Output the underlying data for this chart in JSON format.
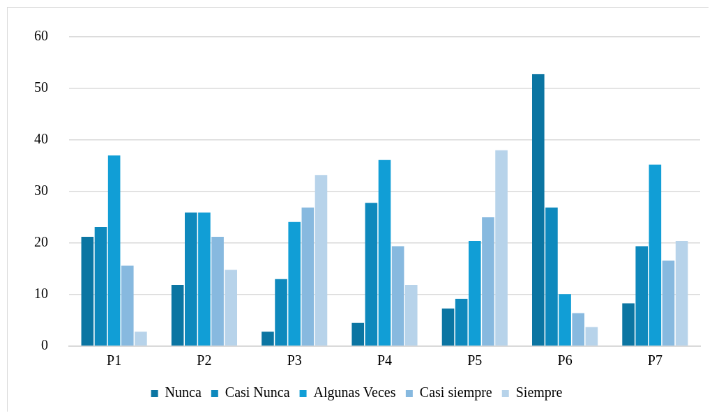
{
  "chart_data": {
    "type": "bar",
    "categories": [
      "P1",
      "P2",
      "P3",
      "P4",
      "P5",
      "P6",
      "P7"
    ],
    "series": [
      {
        "name": "Nunca",
        "color": "#0b75a2",
        "values": [
          21.2,
          11.9,
          2.8,
          4.5,
          7.3,
          52.8,
          8.3
        ]
      },
      {
        "name": "Casi Nunca",
        "color": "#0e89bd",
        "values": [
          23.1,
          25.9,
          13.0,
          27.8,
          9.2,
          26.9,
          19.4
        ]
      },
      {
        "name": "Algunas Veces",
        "color": "#119ed6",
        "values": [
          37.0,
          25.9,
          24.1,
          36.1,
          20.4,
          10.1,
          35.2
        ]
      },
      {
        "name": "Casi siempre",
        "color": "#87b9df",
        "values": [
          15.6,
          21.2,
          26.9,
          19.4,
          25.0,
          6.4,
          16.6
        ]
      },
      {
        "name": "Siempre",
        "color": "#b7d3ea",
        "values": [
          2.8,
          14.8,
          33.2,
          11.9,
          38.0,
          3.7,
          20.4
        ]
      }
    ],
    "ylim": [
      0,
      60
    ],
    "yticks": [
      0,
      10,
      20,
      30,
      40,
      50,
      60
    ],
    "grid": "y",
    "legend": "bottom"
  }
}
